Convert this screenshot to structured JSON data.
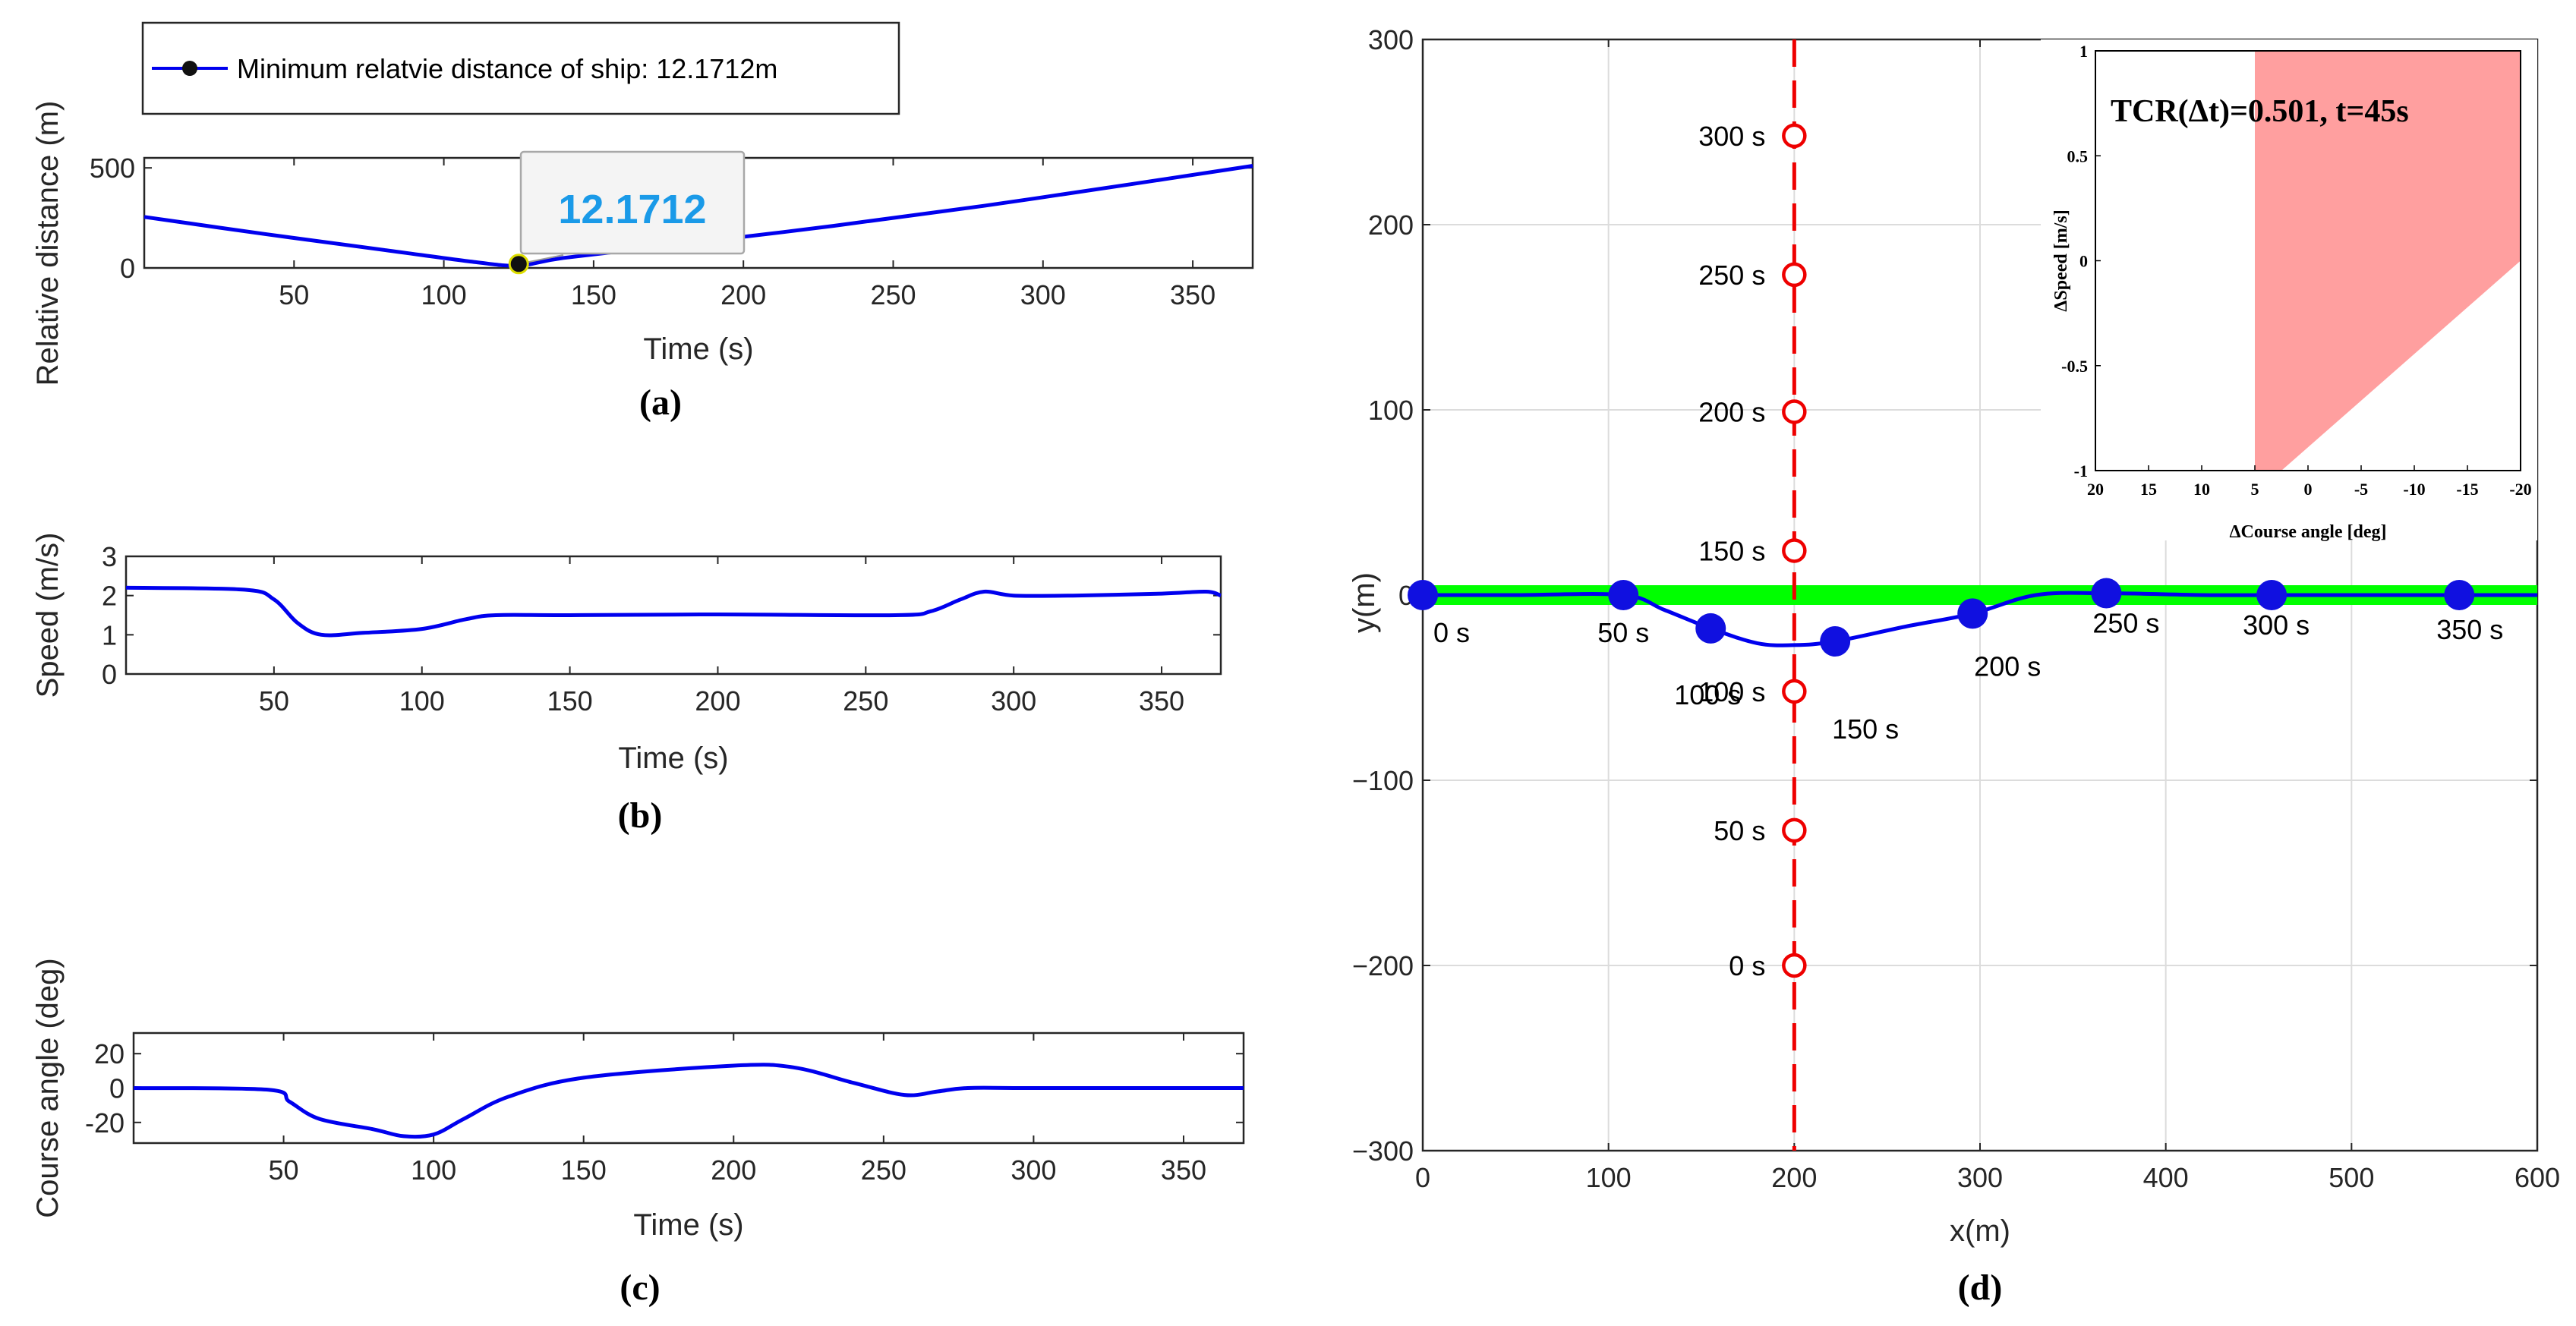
{
  "colors": {
    "series": "#0000ee",
    "marker": "#1010e0",
    "waypoint": "#ee0000",
    "band": "#00ff00",
    "feasible": "#ff9f9f",
    "grid": "#dcdcdc",
    "tip_value": "#1a9ae8"
  },
  "chart_data": [
    {
      "panel": "a",
      "type": "line",
      "caption": "(a)",
      "xlabel": "Time (s)",
      "ylabel": "Relative distance (m)",
      "xlim": [
        0,
        370
      ],
      "ylim": [
        0,
        550
      ],
      "xticks": [
        50,
        100,
        150,
        200,
        250,
        300,
        350
      ],
      "yticks": [
        0,
        500
      ],
      "legend": {
        "label": "Minimum relatvie distance of ship:  12.1712m",
        "position": "top-left"
      },
      "datatip": {
        "x": 125,
        "y": 12.1712,
        "label": "12.1712"
      },
      "series": [
        {
          "name": "Relative distance",
          "x": [
            0,
            40,
            80,
            110,
            125,
            140,
            180,
            230,
            280,
            330,
            370
          ],
          "y": [
            255,
            170,
            90,
            30,
            12,
            50,
            120,
            210,
            310,
            420,
            510
          ]
        }
      ]
    },
    {
      "panel": "b",
      "type": "line",
      "caption": "(b)",
      "xlabel": "Time (s)",
      "ylabel": "Speed (m/s)",
      "xlim": [
        0,
        370
      ],
      "ylim": [
        0,
        3
      ],
      "xticks": [
        50,
        100,
        150,
        200,
        250,
        300,
        350
      ],
      "yticks": [
        0,
        1,
        2,
        3
      ],
      "series": [
        {
          "name": "Speed",
          "x": [
            0,
            40,
            50,
            58,
            66,
            80,
            100,
            115,
            125,
            150,
            200,
            260,
            272,
            282,
            290,
            300,
            320,
            350,
            365,
            370
          ],
          "y": [
            2.2,
            2.15,
            1.9,
            1.3,
            1.0,
            1.05,
            1.15,
            1.4,
            1.5,
            1.5,
            1.52,
            1.5,
            1.6,
            1.9,
            2.1,
            2.0,
            2.0,
            2.05,
            2.1,
            2.0
          ]
        }
      ]
    },
    {
      "panel": "c",
      "type": "line",
      "caption": "(c)",
      "xlabel": "Time (s)",
      "ylabel": "Course angle (deg)",
      "xlim": [
        0,
        370
      ],
      "ylim": [
        -32,
        32
      ],
      "xticks": [
        50,
        100,
        150,
        200,
        250,
        300,
        350
      ],
      "yticks": [
        -20,
        0,
        20
      ],
      "series": [
        {
          "name": "Course angle",
          "x": [
            0,
            45,
            52,
            62,
            80,
            90,
            100,
            110,
            125,
            150,
            200,
            220,
            240,
            257,
            268,
            278,
            300,
            370
          ],
          "y": [
            0,
            -1,
            -8,
            -18,
            -24,
            -28,
            -27,
            -18,
            -5,
            6,
            13,
            12,
            3,
            -4,
            -2,
            0,
            0,
            0
          ]
        }
      ]
    },
    {
      "panel": "d",
      "type": "scatter",
      "caption": "(d)",
      "xlabel": "x(m)",
      "ylabel": "y(m)",
      "xlim": [
        0,
        600
      ],
      "ylim": [
        -300,
        300
      ],
      "xticks": [
        0,
        100,
        200,
        300,
        400,
        500,
        600
      ],
      "yticks": [
        -300,
        -200,
        -100,
        0,
        100,
        200,
        300
      ],
      "series": [
        {
          "name": "Own ship trajectory",
          "x": [
            0,
            50,
            108,
            130,
            155,
            180,
            200,
            222,
            260,
            296,
            330,
            368,
            420,
            457,
            520,
            558,
            600
          ],
          "y": [
            0,
            0,
            0,
            -8,
            -18,
            -26,
            -27,
            -25,
            -17,
            -10,
            0,
            1,
            0,
            0,
            0,
            0,
            0
          ]
        },
        {
          "name": "Own ship positions",
          "x": [
            0,
            108,
            155,
            222,
            296,
            368,
            457,
            558
          ],
          "y": [
            0,
            0,
            -18,
            -25,
            -10,
            1,
            0,
            0
          ],
          "labels": [
            "0 s",
            "50 s",
            "100 s",
            "150 s",
            "200 s",
            "250 s",
            "300 s",
            "350 s"
          ]
        },
        {
          "name": "Target ship positions",
          "x": [
            200,
            200,
            200,
            200,
            200,
            200,
            200
          ],
          "y": [
            -200,
            -127,
            -52,
            24,
            99,
            173,
            248
          ],
          "labels": [
            "0 s",
            "50 s",
            "100 s",
            "150 s",
            "200 s",
            "250 s",
            "300 s"
          ]
        }
      ],
      "inset": {
        "title": "TCR(Δt)=0.501, t=45s",
        "xlabel": "ΔCourse angle [deg]",
        "ylabel": "ΔSpeed [m/s]",
        "xlim": [
          20,
          -20
        ],
        "ylim": [
          -1,
          1
        ],
        "xticks": [
          20,
          15,
          10,
          5,
          0,
          -5,
          -10,
          -15,
          -20
        ],
        "xtick_labels": [
          "20",
          "15",
          "10",
          "5",
          "0",
          "-5",
          "-10",
          "-15",
          "-20"
        ],
        "yticks": [
          -1,
          -0.5,
          0,
          0.5,
          1
        ],
        "ytick_labels": [
          "-1",
          "-0.5",
          "0",
          "0.5",
          "1"
        ],
        "feasible_region": {
          "x": [
            5,
            5,
            -20,
            -20,
            2.5
          ],
          "y": [
            -1,
            1,
            1,
            0,
            -1
          ]
        }
      }
    }
  ]
}
